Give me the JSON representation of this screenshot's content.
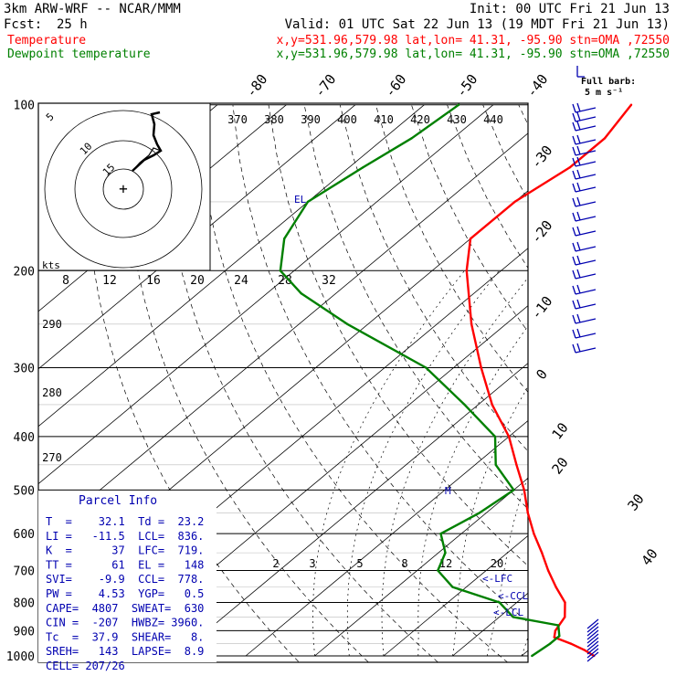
{
  "header": {
    "model": "3km ARW-WRF -- NCAR/MMM",
    "init": "Init: 00 UTC Fri 21 Jun 13",
    "fcst_label": "Fcst:",
    "fcst_value": "25 h",
    "valid": "Valid: 01 UTC Sat 22 Jun 13 (19 MDT Fri 21 Jun 13)",
    "line1_label": "Temperature",
    "line1_info": "x,y=531.96,579.98   lat,lon= 41.31, -95.90  stn=OMA ,72550",
    "line2_label": "Dewpoint temperature",
    "line2_info": "x,y=531.96,579.98   lat,lon= 41.31, -95.90  stn=OMA ,72550",
    "colors": {
      "temperature": "#ff0000",
      "dewpoint": "#008000",
      "barb": "#0000b0",
      "text": "#000000"
    }
  },
  "barb_legend": {
    "title": "Full barb:",
    "value": "5 m s⁻¹"
  },
  "parcel": {
    "title": "Parcel Info",
    "rows": [
      "T  =    32.1  Td =  23.2",
      "LI =   -11.5  LCL=  836.",
      "K  =      37  LFC=  719.",
      "TT =      61  EL =   148",
      "SVI=    -9.9  CCL=  778.",
      "PW =    4.53  YGP=   0.5",
      "CAPE=  4807  SWEAT=  630",
      "CIN =  -207  HWBZ= 3960.",
      "Tc  =  37.9  SHEAR=   8.",
      "SREH=   143  LAPSE=  8.9",
      "CELL= 207/26"
    ]
  },
  "hodograph": {
    "ring_labels": [
      "5",
      "10",
      "15"
    ],
    "unit": "kts"
  },
  "markers": {
    "el": "EL",
    "lfc": "<-LFC",
    "ccl": "<-CCL",
    "lcl": "<-LCL",
    "m": "M"
  },
  "chart_data": {
    "type": "line",
    "title": "",
    "ylabel": "",
    "y_scale": "log-pressure",
    "pressure_ticks": [
      "100",
      "200",
      "300",
      "400",
      "500",
      "600",
      "700",
      "800",
      "900",
      "1000"
    ],
    "isotherm_labels": [
      "-80",
      "-70",
      "-60",
      "-50",
      "-40",
      "-30",
      "-20",
      "-10",
      "0",
      "10",
      "20",
      "30",
      "40"
    ],
    "theta_labels": [
      "370",
      "380",
      "390",
      "400",
      "410",
      "420",
      "430",
      "440"
    ],
    "theta_left_labels": [
      "290",
      "280",
      "270"
    ],
    "theta_e_labels": [
      "8",
      "12",
      "16",
      "20",
      "24",
      "28",
      "32"
    ],
    "mixing_ratio_labels": [
      "2",
      "3",
      "5",
      "8",
      "12",
      "20"
    ],
    "series": [
      {
        "name": "Temperature",
        "color": "#ff0000",
        "points": [
          [
            1000,
            30.5
          ],
          [
            975,
            28
          ],
          [
            950,
            25
          ],
          [
            925,
            21.5
          ],
          [
            900,
            20.5
          ],
          [
            850,
            19.5
          ],
          [
            800,
            17
          ],
          [
            750,
            13
          ],
          [
            700,
            9
          ],
          [
            650,
            5
          ],
          [
            600,
            0.5
          ],
          [
            550,
            -4
          ],
          [
            500,
            -8.5
          ],
          [
            450,
            -14
          ],
          [
            400,
            -20
          ],
          [
            350,
            -28
          ],
          [
            300,
            -36
          ],
          [
            250,
            -45
          ],
          [
            200,
            -55
          ],
          [
            175,
            -60
          ],
          [
            150,
            -60
          ],
          [
            130,
            -58
          ],
          [
            115,
            -58
          ],
          [
            100,
            -60
          ]
        ]
      },
      {
        "name": "Dewpoint temperature",
        "color": "#008000",
        "points": [
          [
            1000,
            21.5
          ],
          [
            950,
            22
          ],
          [
            920,
            22
          ],
          [
            880,
            20
          ],
          [
            850,
            12
          ],
          [
            800,
            7.5
          ],
          [
            750,
            -2
          ],
          [
            700,
            -7
          ],
          [
            650,
            -9
          ],
          [
            600,
            -13
          ],
          [
            550,
            -11
          ],
          [
            500,
            -10
          ],
          [
            450,
            -17
          ],
          [
            400,
            -22
          ],
          [
            350,
            -32
          ],
          [
            300,
            -44
          ],
          [
            250,
            -63
          ],
          [
            220,
            -75
          ],
          [
            200,
            -82
          ],
          [
            175,
            -87
          ],
          [
            150,
            -90
          ],
          [
            130,
            -88
          ],
          [
            115,
            -86
          ],
          [
            100,
            -85
          ]
        ]
      }
    ]
  }
}
